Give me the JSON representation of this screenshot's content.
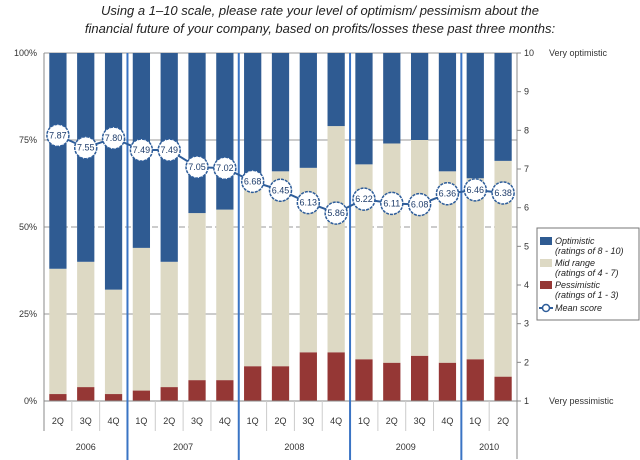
{
  "chart_data": {
    "type": "bar",
    "stacked": true,
    "title_lines": [
      "Using a 1–10 scale, please rate your level of optimism/ pessimism about the",
      "financial future of your company, based on profits/losses these past three months:"
    ],
    "categories": [
      "2Q",
      "3Q",
      "4Q",
      "1Q",
      "2Q",
      "3Q",
      "4Q",
      "1Q",
      "2Q",
      "3Q",
      "4Q",
      "1Q",
      "2Q",
      "3Q",
      "4Q",
      "1Q",
      "2Q"
    ],
    "years": [
      {
        "label": "2006",
        "count": 3
      },
      {
        "label": "2007",
        "count": 4
      },
      {
        "label": "2008",
        "count": 4
      },
      {
        "label": "2009",
        "count": 4
      },
      {
        "label": "2010",
        "count": 2
      }
    ],
    "left_axis": {
      "ylim": [
        0,
        100
      ],
      "ticks": [
        "0%",
        "25%",
        "50%",
        "75%",
        "100%"
      ]
    },
    "right_axis": {
      "ylim": [
        1,
        10
      ],
      "ticks": [
        "1",
        "2",
        "3",
        "4",
        "5",
        "6",
        "7",
        "8",
        "9",
        "10"
      ],
      "top_label": "Very optimistic",
      "bottom_label": "Very pessimistic"
    },
    "series": [
      {
        "name": "Pessimistic (ratings of 1 - 3)",
        "color": "#953735",
        "values": [
          2,
          4,
          2,
          3,
          4,
          6,
          6,
          10,
          10,
          14,
          14,
          12,
          11,
          13,
          11,
          12,
          7
        ]
      },
      {
        "name": "Mid range (ratings of 4 - 7)",
        "color": "#ddd9c4",
        "values": [
          36,
          36,
          30,
          41,
          36,
          48,
          49,
          52,
          56,
          53,
          65,
          56,
          63,
          62,
          55,
          52,
          62
        ]
      },
      {
        "name": "Optimistic (ratings of 8 - 10)",
        "color": "#2f5b92",
        "values": [
          62,
          60,
          68,
          56,
          60,
          46,
          45,
          38,
          34,
          33,
          21,
          32,
          26,
          25,
          34,
          36,
          31
        ]
      }
    ],
    "mean_score": {
      "name": "Mean score",
      "color": "#2e5d9a",
      "values": [
        "7.87",
        "7.55",
        "7.80",
        "7.49",
        "7.49",
        "7.05",
        "7.02",
        "6.68",
        "6.45",
        "6.13",
        "5.86",
        "6.22",
        "6.11",
        "6.08",
        "6.36",
        "6.46",
        "6.38"
      ]
    },
    "legend_order": [
      2,
      1,
      0
    ],
    "legend_position": "right",
    "grid": true
  }
}
